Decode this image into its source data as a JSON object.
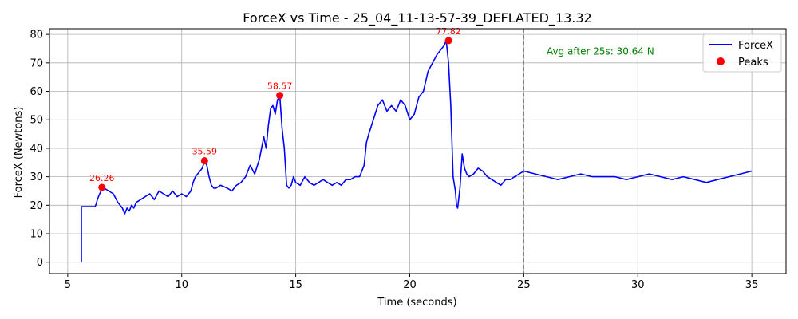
{
  "chart_data": {
    "type": "line",
    "title": "ForceX vs Time - 25_04_11-13-57-39_DEFLATED_13.32",
    "xlabel": "Time (seconds)",
    "ylabel": "ForceX (Newtons)",
    "xlim": [
      4.2,
      36.5
    ],
    "ylim": [
      -4,
      82
    ],
    "xticks": [
      5,
      10,
      15,
      20,
      25,
      30,
      35
    ],
    "yticks": [
      0,
      10,
      20,
      30,
      40,
      50,
      60,
      70,
      80
    ],
    "grid": true,
    "legend_position": "top-right",
    "colors": {
      "line": "#0000ff",
      "peaks": "#ff0000",
      "annotation": "#008000",
      "vline": "#808080"
    },
    "series": [
      {
        "name": "ForceX",
        "x": [
          5.6,
          5.6,
          5.7,
          5.8,
          6.0,
          6.2,
          6.25,
          6.3,
          6.4,
          6.5,
          6.6,
          6.8,
          7.0,
          7.2,
          7.4,
          7.5,
          7.6,
          7.7,
          7.8,
          7.9,
          8.0,
          8.2,
          8.4,
          8.6,
          8.8,
          9.0,
          9.2,
          9.4,
          9.6,
          9.8,
          10.0,
          10.2,
          10.4,
          10.5,
          10.6,
          10.8,
          10.9,
          11.0,
          11.1,
          11.2,
          11.3,
          11.4,
          11.5,
          11.7,
          12.0,
          12.2,
          12.4,
          12.6,
          12.8,
          13.0,
          13.2,
          13.4,
          13.6,
          13.7,
          13.8,
          13.9,
          14.0,
          14.1,
          14.2,
          14.3,
          14.4,
          14.5,
          14.6,
          14.7,
          14.8,
          14.9,
          15.0,
          15.2,
          15.4,
          15.6,
          15.8,
          16.0,
          16.2,
          16.4,
          16.6,
          16.8,
          17.0,
          17.2,
          17.4,
          17.6,
          17.8,
          18.0,
          18.1,
          18.2,
          18.4,
          18.6,
          18.8,
          19.0,
          19.2,
          19.4,
          19.6,
          19.8,
          20.0,
          20.2,
          20.4,
          20.6,
          20.8,
          21.0,
          21.2,
          21.4,
          21.5,
          21.6,
          21.7,
          21.8,
          21.9,
          22.0,
          22.05,
          22.1,
          22.2,
          22.3,
          22.4,
          22.5,
          22.6,
          22.8,
          23.0,
          23.2,
          23.4,
          23.6,
          23.8,
          24.0,
          24.2,
          24.4,
          24.6,
          24.8,
          25.0,
          25.5,
          26.0,
          26.5,
          27.0,
          27.5,
          28.0,
          28.5,
          29.0,
          29.5,
          30.0,
          30.5,
          31.0,
          31.5,
          32.0,
          32.5,
          33.0,
          33.5,
          34.0,
          34.5,
          35.0
        ],
        "y": [
          0,
          19.5,
          19.5,
          19.5,
          19.5,
          19.5,
          20.5,
          22,
          24,
          25.5,
          26,
          25,
          24,
          21,
          19,
          17,
          19,
          18,
          20,
          19,
          21,
          22,
          23,
          24,
          22,
          25,
          24,
          23,
          25,
          23,
          24,
          23,
          25,
          28,
          30,
          32,
          33,
          35.5,
          34,
          30,
          27,
          26,
          26,
          27,
          26,
          25,
          27,
          28,
          30,
          34,
          31,
          36,
          44,
          40,
          48,
          54,
          55,
          52,
          57,
          58.5,
          47,
          40,
          27,
          26,
          27,
          30,
          28,
          27,
          30,
          28,
          27,
          28,
          29,
          28,
          27,
          28,
          27,
          29,
          29,
          30,
          30,
          34,
          42,
          45,
          50,
          55,
          57,
          53,
          55,
          53,
          57,
          55,
          50,
          52,
          58,
          60,
          67,
          70,
          73,
          75,
          76,
          77.8,
          70,
          55,
          30,
          25,
          20,
          19,
          26,
          38,
          33,
          31,
          30,
          31,
          33,
          32,
          30,
          29,
          28,
          27,
          29,
          29,
          30,
          31,
          32,
          31,
          30,
          29,
          30,
          31,
          30,
          30,
          30,
          29,
          30,
          31,
          30,
          29,
          30,
          29,
          28,
          29,
          30,
          31,
          32
        ]
      },
      {
        "name": "Peaks",
        "x": [
          6.5,
          11.0,
          14.3,
          21.7
        ],
        "y": [
          26.26,
          35.59,
          58.57,
          77.82
        ],
        "labels": [
          "26.26",
          "35.59",
          "58.57",
          "77.82"
        ]
      }
    ],
    "annotations": [
      {
        "text": "Avg after 25s: 30.64 N",
        "x": 26.0,
        "y": 74
      }
    ],
    "vlines": [
      {
        "x": 25
      }
    ]
  }
}
